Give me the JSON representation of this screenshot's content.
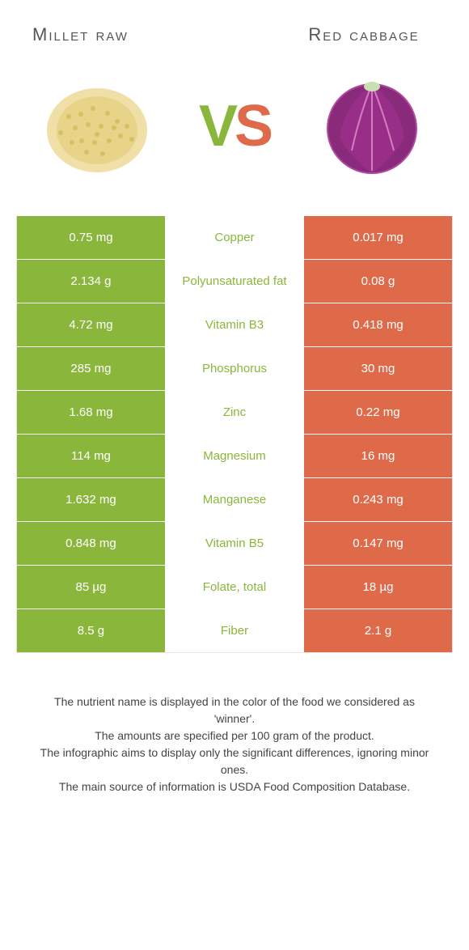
{
  "header": {
    "left_title": "Millet raw",
    "right_title": "Red cabbage"
  },
  "vs": {
    "v": "V",
    "s": "S"
  },
  "colors": {
    "green": "#8bb63c",
    "red": "#df6a4a",
    "row_border": "#ffffff",
    "table_border": "#e5e5e5",
    "bg": "#ffffff"
  },
  "typography": {
    "title_size_pt": 22,
    "cell_size_pt": 15,
    "vs_size_pt": 72,
    "footnote_size_pt": 14
  },
  "table": {
    "rows": [
      {
        "left": "0.75 mg",
        "name": "Copper",
        "winner": "green",
        "right": "0.017 mg"
      },
      {
        "left": "2.134 g",
        "name": "Polyunsaturated fat",
        "winner": "green",
        "right": "0.08 g"
      },
      {
        "left": "4.72 mg",
        "name": "Vitamin B3",
        "winner": "green",
        "right": "0.418 mg"
      },
      {
        "left": "285 mg",
        "name": "Phosphorus",
        "winner": "green",
        "right": "30 mg"
      },
      {
        "left": "1.68 mg",
        "name": "Zinc",
        "winner": "green",
        "right": "0.22 mg"
      },
      {
        "left": "114 mg",
        "name": "Magnesium",
        "winner": "green",
        "right": "16 mg"
      },
      {
        "left": "1.632 mg",
        "name": "Manganese",
        "winner": "green",
        "right": "0.243 mg"
      },
      {
        "left": "0.848 mg",
        "name": "Vitamin B5",
        "winner": "green",
        "right": "0.147 mg"
      },
      {
        "left": "85 µg",
        "name": "Folate, total",
        "winner": "green",
        "right": "18 µg"
      },
      {
        "left": "8.5 g",
        "name": "Fiber",
        "winner": "green",
        "right": "2.1 g"
      }
    ]
  },
  "footnote": {
    "line1": "The nutrient name is displayed in the color of the food we considered as 'winner'.",
    "line2": "The amounts are specified per 100 gram of the product.",
    "line3": "The infographic aims to display only the significant differences, ignoring minor ones.",
    "line4": "The main source of information is USDA Food Composition Database."
  }
}
